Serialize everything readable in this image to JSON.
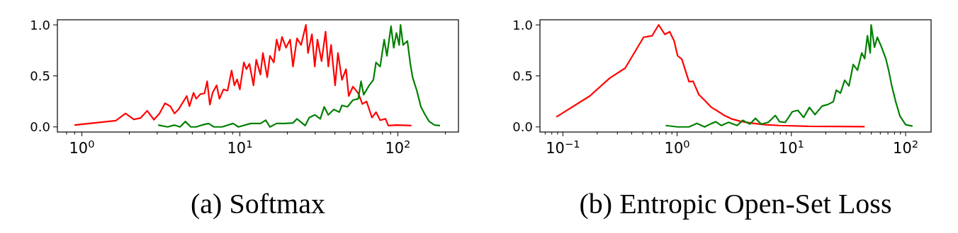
{
  "chart_data": [
    {
      "type": "line",
      "xlabel": "(a) Softmax",
      "log": "x",
      "grid": false,
      "xlim": [
        0.7,
        242
      ],
      "ylim": [
        -0.05,
        1.05
      ],
      "xticks": [
        {
          "value": 0.8,
          "label": null
        },
        {
          "value": 0.9,
          "label": null
        },
        {
          "value": 1,
          "label": "10$^{0}$"
        },
        {
          "value": 2,
          "label": null
        },
        {
          "value": 3,
          "label": null
        },
        {
          "value": 4,
          "label": null
        },
        {
          "value": 5,
          "label": null
        },
        {
          "value": 6,
          "label": null
        },
        {
          "value": 7,
          "label": null
        },
        {
          "value": 8,
          "label": null
        },
        {
          "value": 9,
          "label": null
        },
        {
          "value": 10,
          "label": "10$^{1}$"
        },
        {
          "value": 20,
          "label": null
        },
        {
          "value": 30,
          "label": null
        },
        {
          "value": 40,
          "label": null
        },
        {
          "value": 50,
          "label": null
        },
        {
          "value": 60,
          "label": null
        },
        {
          "value": 70,
          "label": null
        },
        {
          "value": 80,
          "label": null
        },
        {
          "value": 90,
          "label": null
        },
        {
          "value": 100,
          "label": "10$^{2}$"
        },
        {
          "value": 200,
          "label": null
        }
      ],
      "yticks": [
        {
          "value": 0,
          "label": "0.0"
        },
        {
          "value": 0.5,
          "label": "0.5"
        },
        {
          "value": 1,
          "label": "1.0"
        }
      ],
      "series": [
        {
          "color": "#ff0000",
          "x": [
            0.898,
            1.64,
            1.89,
            2.13,
            2.35,
            2.59,
            2.86,
            3.1,
            3.36,
            3.63,
            3.86,
            4.09,
            4.61,
            4.8,
            5.09,
            5.3,
            5.62,
            5.97,
            6.21,
            6.46,
            6.72,
            7.13,
            7.43,
            7.88,
            8.36,
            8.87,
            9.24,
            9.61,
            10,
            10.6,
            11,
            11.5,
            12.2,
            12.7,
            13.5,
            14,
            14.9,
            15.5,
            16.4,
            17.1,
            17.8,
            18.5,
            19.6,
            20.8,
            21.7,
            23,
            24.4,
            26.2,
            27,
            28.6,
            29.8,
            31,
            32.9,
            34.9,
            36.3,
            37.8,
            40.1,
            41.8,
            44.3,
            47,
            48.9,
            52,
            56.2,
            59.7,
            63.4,
            68.6,
            72.8,
            77.3,
            83.6,
            87.1,
            98,
            122
          ],
          "values": [
            0.018,
            0.061,
            0.132,
            0.074,
            0.087,
            0.158,
            0.071,
            0.132,
            0.232,
            0.203,
            0.132,
            0.171,
            0.303,
            0.203,
            0.334,
            0.276,
            0.321,
            0.329,
            0.447,
            0.218,
            0.334,
            0.408,
            0.276,
            0.368,
            0.355,
            0.553,
            0.408,
            0.466,
            0.368,
            0.632,
            0.566,
            0.618,
            0.408,
            0.658,
            0.513,
            0.724,
            0.487,
            0.697,
            0.632,
            0.855,
            0.75,
            0.882,
            0.776,
            0.855,
            0.592,
            0.868,
            0.803,
            1,
            0.724,
            0.908,
            0.592,
            0.855,
            0.645,
            0.934,
            0.592,
            0.803,
            0.408,
            0.724,
            0.461,
            0.566,
            0.303,
            0.395,
            0.329,
            0.224,
            0.25,
            0.092,
            0.145,
            0.066,
            0.079,
            0.013,
            0.018,
            0.013
          ]
        },
        {
          "color": "#008000",
          "x": [
            3.04,
            3.49,
            3.86,
            4.18,
            4.52,
            4.89,
            5.3,
            5.74,
            6.34,
            6.86,
            7.72,
            9.06,
            9.8,
            11.7,
            13.5,
            14.6,
            15.5,
            17.1,
            19.2,
            21.7,
            23,
            25.9,
            27.5,
            29.8,
            32.3,
            34.2,
            36.3,
            39.3,
            42.6,
            44.3,
            48,
            52,
            56.2,
            58.5,
            60.8,
            65.9,
            70,
            72.8,
            77.3,
            82,
            85.3,
            90.6,
            94.2,
            98,
            102,
            104,
            108,
            115,
            120,
            124,
            132,
            140,
            149,
            158,
            171,
            185
          ],
          "values": [
            0.018,
            0,
            0.018,
            0,
            0.053,
            0,
            0,
            0.018,
            0.034,
            0,
            0,
            0.034,
            0,
            0.034,
            0.034,
            0.066,
            0,
            0.034,
            0.034,
            0.039,
            0.079,
            0.013,
            0.092,
            0.118,
            0.079,
            0.197,
            0.118,
            0.171,
            0.145,
            0.211,
            0.197,
            0.263,
            0.276,
            0.447,
            0.316,
            0.408,
            0.461,
            0.632,
            0.592,
            0.855,
            0.697,
            0.987,
            0.776,
            0.921,
            0.803,
            1,
            0.803,
            0.842,
            0.618,
            0.487,
            0.355,
            0.197,
            0.118,
            0.053,
            0.018,
            0.013
          ]
        }
      ]
    },
    {
      "type": "line",
      "xlabel": "(b) Entropic Open-Set Loss",
      "log": "x",
      "grid": false,
      "xlim": [
        0.063,
        167
      ],
      "ylim": [
        -0.05,
        1.05
      ],
      "xticks": [
        {
          "value": 0.07,
          "label": null
        },
        {
          "value": 0.08,
          "label": null
        },
        {
          "value": 0.09,
          "label": null
        },
        {
          "value": 0.1,
          "label": "10$^{−1}$"
        },
        {
          "value": 0.2,
          "label": null
        },
        {
          "value": 0.3,
          "label": null
        },
        {
          "value": 0.4,
          "label": null
        },
        {
          "value": 0.5,
          "label": null
        },
        {
          "value": 0.6,
          "label": null
        },
        {
          "value": 0.7,
          "label": null
        },
        {
          "value": 0.8,
          "label": null
        },
        {
          "value": 0.9,
          "label": null
        },
        {
          "value": 1,
          "label": "10$^{0}$"
        },
        {
          "value": 2,
          "label": null
        },
        {
          "value": 3,
          "label": null
        },
        {
          "value": 4,
          "label": null
        },
        {
          "value": 5,
          "label": null
        },
        {
          "value": 6,
          "label": null
        },
        {
          "value": 7,
          "label": null
        },
        {
          "value": 8,
          "label": null
        },
        {
          "value": 9,
          "label": null
        },
        {
          "value": 10,
          "label": "10$^{1}$"
        },
        {
          "value": 20,
          "label": null
        },
        {
          "value": 30,
          "label": null
        },
        {
          "value": 40,
          "label": null
        },
        {
          "value": 50,
          "label": null
        },
        {
          "value": 60,
          "label": null
        },
        {
          "value": 70,
          "label": null
        },
        {
          "value": 80,
          "label": null
        },
        {
          "value": 90,
          "label": null
        },
        {
          "value": 100,
          "label": "10$^{2}$"
        }
      ],
      "yticks": [
        {
          "value": 0,
          "label": "0.0"
        },
        {
          "value": 0.5,
          "label": "0.5"
        },
        {
          "value": 1,
          "label": "1.0"
        }
      ],
      "series": [
        {
          "color": "#ff0000",
          "x": [
            0.0877,
            0.172,
            0.257,
            0.351,
            0.509,
            0.604,
            0.689,
            0.781,
            0.861,
            0.942,
            1.01,
            1.1,
            1.27,
            1.38,
            1.55,
            1.74,
            2,
            2.31,
            2.59,
            2.99,
            3.55,
            4.46,
            5.93,
            7.89,
            14,
            43.8
          ],
          "values": [
            0.098,
            0.303,
            0.478,
            0.576,
            0.879,
            0.893,
            1,
            0.907,
            0.933,
            0.843,
            0.697,
            0.663,
            0.444,
            0.447,
            0.317,
            0.261,
            0.191,
            0.149,
            0.112,
            0.079,
            0.056,
            0.037,
            0.022,
            0.014,
            0.006,
            0.003
          ]
        },
        {
          "color": "#008000",
          "x": [
            0.794,
            1.01,
            1.27,
            1.49,
            1.74,
            2,
            2.18,
            2.44,
            2.82,
            3.35,
            3.76,
            4.33,
            4.85,
            5.44,
            6.28,
            7.24,
            7.89,
            8.84,
            10.2,
            11.4,
            12.8,
            14.4,
            16.1,
            18.6,
            20.8,
            23.3,
            24.7,
            26.9,
            29.3,
            31.9,
            34.8,
            37.9,
            41.3,
            43.8,
            46.3,
            49,
            49.9,
            53.4,
            56.5,
            61.6,
            67.1,
            71,
            75.2,
            81.9,
            89.2,
            100,
            115
          ],
          "values": [
            0.014,
            0,
            0,
            0.034,
            0,
            0.034,
            0.051,
            0.014,
            0.045,
            0.014,
            0.065,
            0.028,
            0.084,
            0.028,
            0.045,
            0.112,
            0.051,
            0.045,
            0.149,
            0.163,
            0.093,
            0.191,
            0.121,
            0.205,
            0.219,
            0.247,
            0.36,
            0.331,
            0.458,
            0.402,
            0.612,
            0.556,
            0.725,
            0.669,
            0.893,
            0.725,
            1,
            0.781,
            0.879,
            0.781,
            0.669,
            0.556,
            0.416,
            0.247,
            0.107,
            0.022,
            0.008
          ]
        }
      ]
    }
  ]
}
